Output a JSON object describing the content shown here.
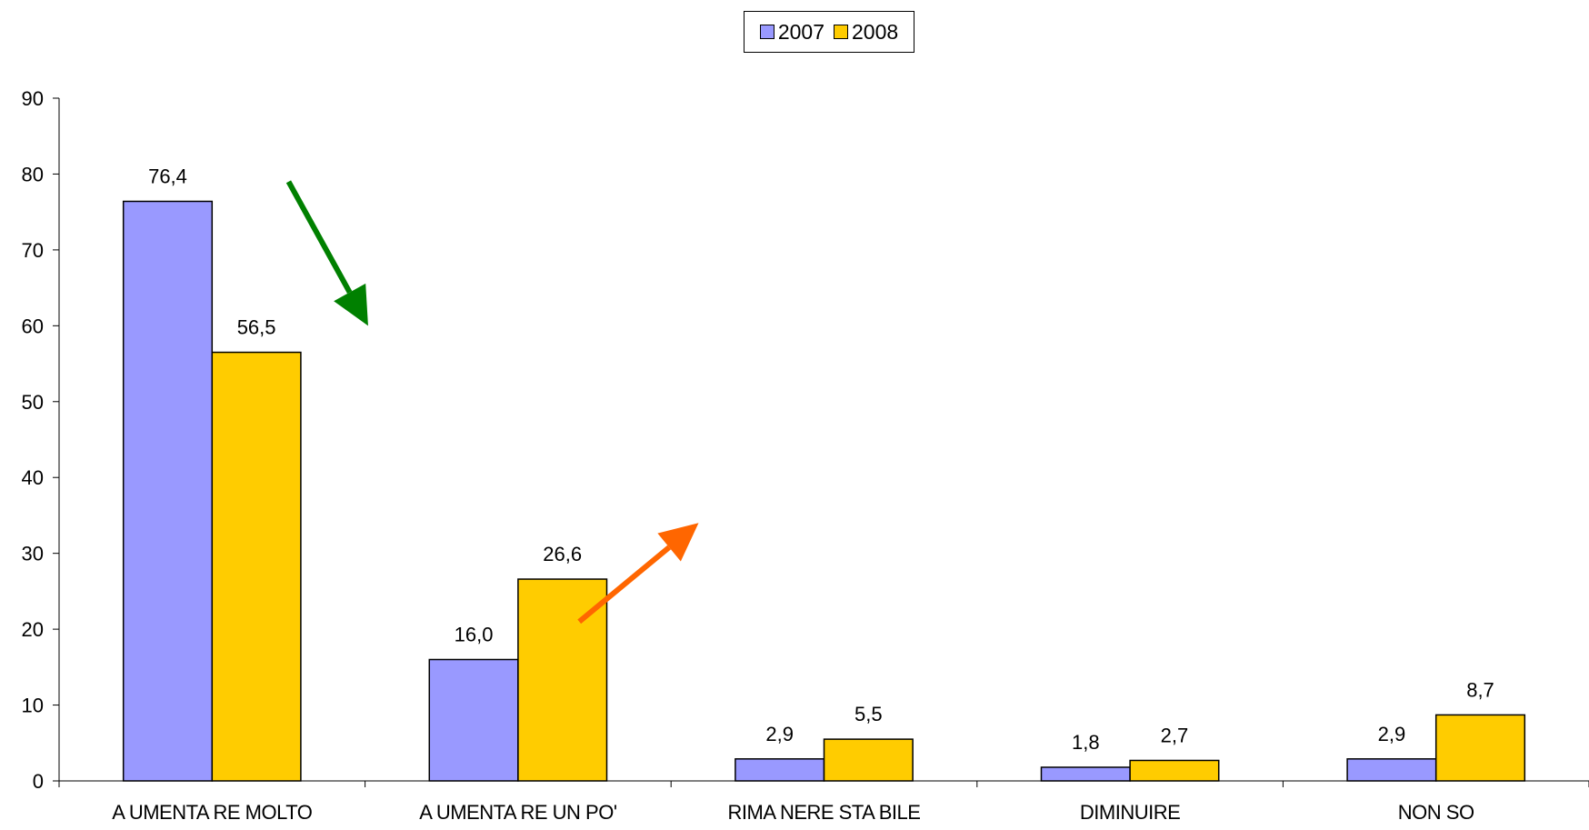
{
  "chart_data": {
    "type": "bar",
    "categories": [
      "A UMENTA RE MOLTO",
      "A UMENTA RE UN PO'",
      "RIMA NERE STA BILE",
      "DIMINUIRE",
      "NON SO"
    ],
    "series": [
      {
        "name": "2007",
        "color": "#9999ff",
        "values": [
          76.4,
          16.0,
          2.9,
          1.8,
          2.9
        ],
        "labels": [
          "76,4",
          "16,0",
          "2,9",
          "1,8",
          "2,9"
        ]
      },
      {
        "name": "2008",
        "color": "#ffcc00",
        "values": [
          56.5,
          26.6,
          5.5,
          2.7,
          8.7
        ],
        "labels": [
          "56,5",
          "26,6",
          "5,5",
          "2,7",
          "8,7"
        ]
      }
    ],
    "ylim": [
      0,
      90
    ],
    "yticks": [
      0,
      10,
      20,
      30,
      40,
      50,
      60,
      70,
      80,
      90
    ],
    "legend_position": "top-center",
    "grid": false,
    "annotations": [
      {
        "type": "arrow",
        "color": "#008000",
        "from": [
          0.25,
          79
        ],
        "to": [
          0.51,
          60
        ]
      },
      {
        "type": "arrow",
        "color": "#ff6600",
        "from": [
          1.2,
          21
        ],
        "to": [
          1.59,
          34
        ]
      }
    ]
  }
}
